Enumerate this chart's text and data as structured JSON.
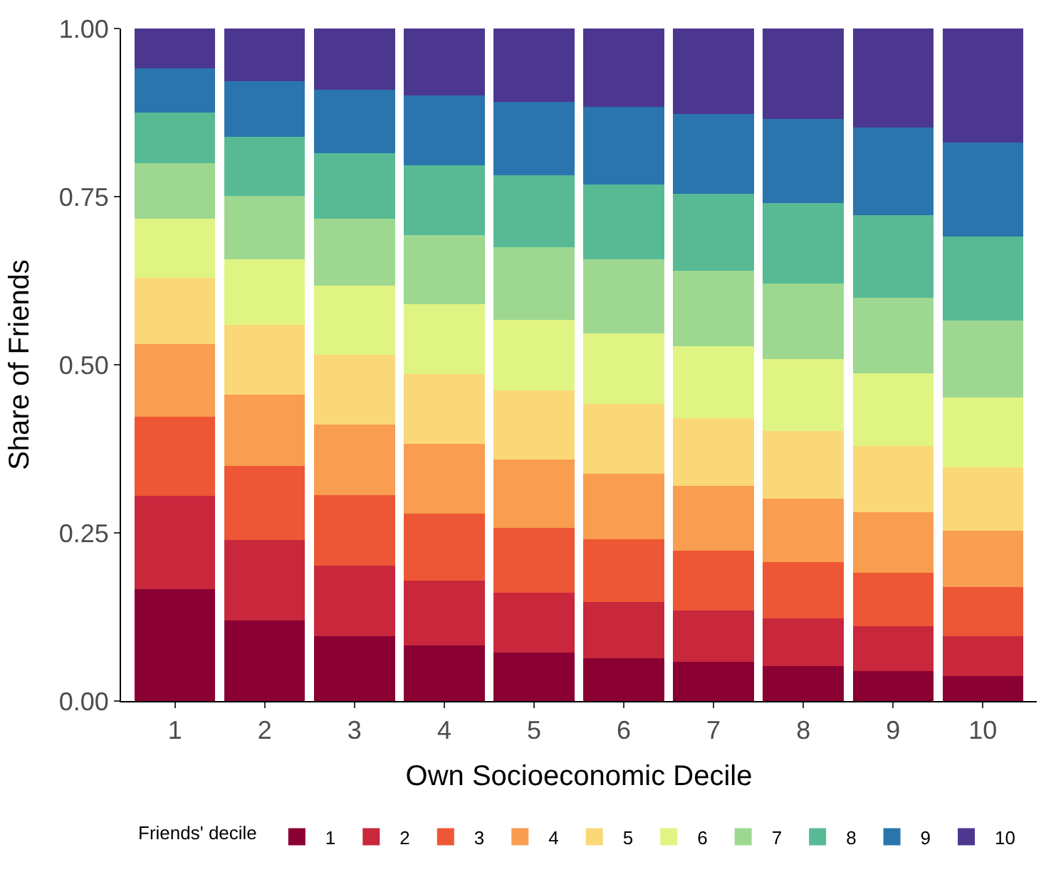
{
  "chart_data": {
    "type": "bar",
    "stacked": true,
    "xlabel": "Own Socioeconomic Decile",
    "ylabel": "Share of Friends",
    "legend_title": "Friends' decile",
    "legend": "bottom",
    "categories": [
      "1",
      "2",
      "3",
      "4",
      "5",
      "6",
      "7",
      "8",
      "9",
      "10"
    ],
    "ylim": [
      0,
      1.0
    ],
    "yticks": [
      {
        "value": 0,
        "label": "0.00"
      },
      {
        "value": 0.25,
        "label": "0.25"
      },
      {
        "value": 0.5,
        "label": "0.50"
      },
      {
        "value": 0.75,
        "label": "0.75"
      },
      {
        "value": 1.0,
        "label": "1.00"
      }
    ],
    "series": [
      {
        "name": "1",
        "color": "#8a0033",
        "values": [
          0.166,
          0.12,
          0.096,
          0.083,
          0.072,
          0.064,
          0.058,
          0.052,
          0.045,
          0.037
        ]
      },
      {
        "name": "2",
        "color": "#c8273c",
        "values": [
          0.139,
          0.119,
          0.105,
          0.096,
          0.089,
          0.083,
          0.077,
          0.071,
          0.066,
          0.059
        ]
      },
      {
        "name": "3",
        "color": "#ee5735",
        "values": [
          0.118,
          0.111,
          0.105,
          0.1,
          0.096,
          0.093,
          0.088,
          0.084,
          0.08,
          0.073
        ]
      },
      {
        "name": "4",
        "color": "#f99d50",
        "values": [
          0.108,
          0.106,
          0.105,
          0.103,
          0.102,
          0.098,
          0.097,
          0.094,
          0.09,
          0.084
        ]
      },
      {
        "name": "5",
        "color": "#fad878",
        "values": [
          0.098,
          0.103,
          0.104,
          0.104,
          0.103,
          0.104,
          0.101,
          0.101,
          0.098,
          0.094
        ]
      },
      {
        "name": "6",
        "color": "#e0f484",
        "values": [
          0.088,
          0.098,
          0.103,
          0.104,
          0.105,
          0.105,
          0.107,
          0.107,
          0.108,
          0.104
        ]
      },
      {
        "name": "7",
        "color": "#9ed890",
        "values": [
          0.083,
          0.094,
          0.099,
          0.103,
          0.108,
          0.11,
          0.112,
          0.112,
          0.113,
          0.115
        ]
      },
      {
        "name": "8",
        "color": "#57ba94",
        "values": [
          0.075,
          0.088,
          0.098,
          0.104,
          0.107,
          0.111,
          0.114,
          0.119,
          0.122,
          0.125
        ]
      },
      {
        "name": "9",
        "color": "#2a75ae",
        "values": [
          0.066,
          0.083,
          0.094,
          0.103,
          0.109,
          0.115,
          0.119,
          0.125,
          0.131,
          0.139
        ]
      },
      {
        "name": "10",
        "color": "#4c3790",
        "values": [
          0.059,
          0.078,
          0.091,
          0.1,
          0.109,
          0.117,
          0.127,
          0.135,
          0.147,
          0.17
        ]
      }
    ]
  }
}
